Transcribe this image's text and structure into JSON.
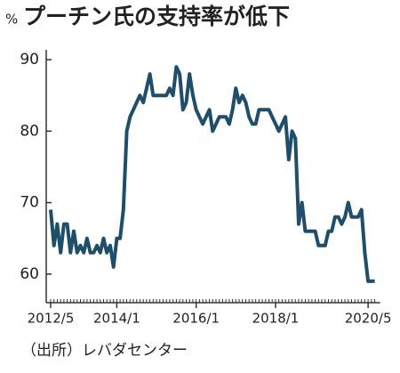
{
  "chart_data": {
    "type": "line",
    "title": "プーチン氏の支持率が低下",
    "y_unit": "%",
    "source": "（出所）レバダセンター",
    "x": [
      "2012/5",
      "2012/6",
      "2012/7",
      "2012/8",
      "2012/9",
      "2012/10",
      "2012/11",
      "2012/12",
      "2013/1",
      "2013/2",
      "2013/3",
      "2013/4",
      "2013/5",
      "2013/6",
      "2013/7",
      "2013/8",
      "2013/9",
      "2013/10",
      "2013/11",
      "2013/12",
      "2014/1",
      "2014/2",
      "2014/3",
      "2014/4",
      "2014/5",
      "2014/6",
      "2014/7",
      "2014/8",
      "2014/9",
      "2014/10",
      "2014/11",
      "2014/12",
      "2015/1",
      "2015/2",
      "2015/3",
      "2015/4",
      "2015/5",
      "2015/6",
      "2015/7",
      "2015/8",
      "2015/9",
      "2015/10",
      "2015/11",
      "2015/12",
      "2016/1",
      "2016/2",
      "2016/3",
      "2016/4",
      "2016/5",
      "2016/6",
      "2016/7",
      "2016/8",
      "2016/9",
      "2016/10",
      "2016/11",
      "2016/12",
      "2017/1",
      "2017/2",
      "2017/3",
      "2017/4",
      "2017/5",
      "2017/6",
      "2017/7",
      "2017/8",
      "2017/9",
      "2017/10",
      "2017/11",
      "2017/12",
      "2018/1",
      "2018/2",
      "2018/3",
      "2018/4",
      "2018/5",
      "2018/6",
      "2018/7",
      "2018/8",
      "2018/9",
      "2018/10",
      "2018/11",
      "2018/12",
      "2019/1",
      "2019/2",
      "2019/3",
      "2019/4",
      "2019/5",
      "2019/6",
      "2019/7",
      "2019/8",
      "2019/9",
      "2019/10",
      "2019/11",
      "2019/12",
      "2020/1",
      "2020/2",
      "2020/3",
      "2020/4",
      "2020/5",
      "2020/6",
      "2020/7"
    ],
    "series": [
      {
        "name": "支持率",
        "color": "#1d4e6c",
        "values": [
          69,
          64,
          67,
          63,
          67,
          67,
          63,
          66,
          63,
          64,
          63,
          65,
          63,
          63,
          64,
          63,
          65,
          63,
          64,
          61,
          65,
          65,
          69,
          80,
          82,
          83,
          84,
          85,
          84,
          86,
          88,
          85,
          85,
          85,
          85,
          85,
          86,
          85,
          89,
          88,
          83,
          84,
          88,
          85,
          83,
          82,
          81,
          82,
          83,
          80,
          81,
          82,
          82,
          82,
          81,
          83,
          86,
          84,
          85,
          84,
          82,
          81,
          81,
          83,
          83,
          83,
          83,
          82,
          81,
          80,
          81,
          82,
          76,
          80,
          79,
          67,
          70,
          66,
          66,
          66,
          66,
          64,
          64,
          64,
          66,
          66,
          68,
          68,
          67,
          68,
          70,
          68,
          68,
          68,
          69,
          63,
          59,
          59,
          59
        ]
      }
    ],
    "ylim": [
      56,
      92
    ],
    "yticks": [
      60,
      70,
      80,
      90
    ],
    "xticks": [
      "2012/5",
      "2014/1",
      "2016/1",
      "2018/1",
      "2020/5"
    ]
  }
}
